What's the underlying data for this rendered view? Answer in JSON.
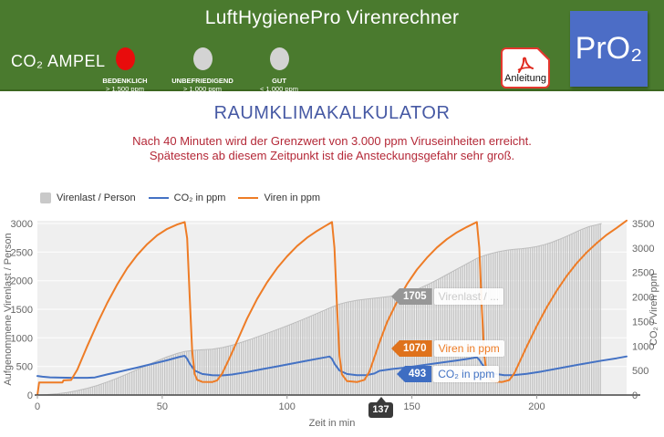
{
  "header": {
    "title": "LuftHygienePro Virenrechner",
    "ampel_label": "CO₂ AMPEL",
    "lights": [
      {
        "label": "BEDENKLICH",
        "threshold": "> 1.500 ppm",
        "color": "#e80c0c",
        "active": true
      },
      {
        "label": "UNBEFRIEDIGEND",
        "threshold": "> 1.000 ppm",
        "color": "#d3d3d3",
        "active": false
      },
      {
        "label": "GUT",
        "threshold": "< 1.000 ppm",
        "color": "#d3d3d3",
        "active": false
      }
    ],
    "manual_button_label": "Anleitung",
    "manual_button_icon": "pdf-icon",
    "logo_text": "PrO₂"
  },
  "main": {
    "title": "RAUMKLIMAKALKULATOR",
    "warning_line1": "Nach 40 Minuten wird der Grenzwert von 3.000 ppm Viruseinheiten erreicht.",
    "warning_line2": "Spätestens ab diesem Zeitpunkt ist die Ansteckungsgefahr sehr groß."
  },
  "colors": {
    "header_green": "#4a7a2e",
    "logo_blue": "#4c6dc6",
    "title_blue": "#4659a4",
    "warning_red": "#b42837",
    "plot_background": "#efefef"
  },
  "tooltips": {
    "virenlast": {
      "value": "1705",
      "label": "Virenlast / ..."
    },
    "viren": {
      "value": "1070",
      "label": "Viren in ppm"
    },
    "co2": {
      "value": "493",
      "label": "CO₂ in ppm"
    },
    "x_marker": "137"
  },
  "chart_data": {
    "type": "combo",
    "xaxis": {
      "title": "Zeit in min",
      "min": 0,
      "max": 236,
      "ticks": [
        0,
        50,
        100,
        150,
        200
      ],
      "marker_value": 137
    },
    "yaxis_left": {
      "title": "Aufgenommene Virenlast / Person",
      "min": 0,
      "max": 3000,
      "ticks": [
        0,
        500,
        1000,
        1500,
        2000,
        2500,
        3000
      ]
    },
    "yaxis_right": {
      "title": "CO₂ / Viren ppm",
      "min": 0,
      "max": 3500,
      "ticks": [
        0,
        500,
        1000,
        1500,
        2000,
        2500,
        3000,
        3500
      ]
    },
    "grid": true,
    "legend_position": "top-left",
    "series": [
      {
        "name": "Virenlast / Person",
        "type": "area-bars",
        "axis": "left",
        "color": "#c2c2c2",
        "points": [
          [
            0,
            0
          ],
          [
            4,
            8
          ],
          [
            8,
            22
          ],
          [
            12,
            45
          ],
          [
            16,
            78
          ],
          [
            20,
            118
          ],
          [
            24,
            168
          ],
          [
            28,
            228
          ],
          [
            32,
            295
          ],
          [
            36,
            368
          ],
          [
            40,
            445
          ],
          [
            44,
            522
          ],
          [
            48,
            598
          ],
          [
            52,
            668
          ],
          [
            56,
            728
          ],
          [
            59,
            762
          ],
          [
            62,
            780
          ],
          [
            66,
            792
          ],
          [
            70,
            802
          ],
          [
            74,
            830
          ],
          [
            78,
            872
          ],
          [
            82,
            925
          ],
          [
            86,
            985
          ],
          [
            90,
            1048
          ],
          [
            94,
            1112
          ],
          [
            98,
            1178
          ],
          [
            102,
            1245
          ],
          [
            106,
            1315
          ],
          [
            110,
            1390
          ],
          [
            114,
            1465
          ],
          [
            118,
            1540
          ],
          [
            121,
            1590
          ],
          [
            124,
            1625
          ],
          [
            128,
            1658
          ],
          [
            132,
            1680
          ],
          [
            137,
            1705
          ],
          [
            141,
            1725
          ],
          [
            145,
            1755
          ],
          [
            149,
            1800
          ],
          [
            153,
            1865
          ],
          [
            157,
            1945
          ],
          [
            161,
            2035
          ],
          [
            165,
            2130
          ],
          [
            169,
            2225
          ],
          [
            173,
            2320
          ],
          [
            176,
            2390
          ],
          [
            179,
            2440
          ],
          [
            182,
            2480
          ],
          [
            185,
            2510
          ],
          [
            188,
            2532
          ],
          [
            191,
            2548
          ],
          [
            194,
            2560
          ],
          [
            197,
            2575
          ],
          [
            200,
            2598
          ],
          [
            203,
            2630
          ],
          [
            206,
            2672
          ],
          [
            209,
            2722
          ],
          [
            212,
            2778
          ],
          [
            215,
            2838
          ],
          [
            218,
            2898
          ],
          [
            221,
            2945
          ],
          [
            224,
            2980
          ],
          [
            226,
            3000
          ]
        ]
      },
      {
        "name": "CO₂ in ppm",
        "type": "line",
        "axis": "right",
        "color": "#4472c4",
        "points": [
          [
            0,
            390
          ],
          [
            2,
            375
          ],
          [
            5,
            362
          ],
          [
            9,
            355
          ],
          [
            14,
            352
          ],
          [
            20,
            352
          ],
          [
            23,
            360
          ],
          [
            28,
            420
          ],
          [
            34,
            490
          ],
          [
            40,
            560
          ],
          [
            46,
            635
          ],
          [
            52,
            710
          ],
          [
            57,
            780
          ],
          [
            59,
            800
          ],
          [
            60,
            740
          ],
          [
            61,
            640
          ],
          [
            63,
            500
          ],
          [
            66,
            430
          ],
          [
            70,
            405
          ],
          [
            74,
            400
          ],
          [
            78,
            418
          ],
          [
            84,
            470
          ],
          [
            90,
            528
          ],
          [
            96,
            585
          ],
          [
            102,
            642
          ],
          [
            108,
            700
          ],
          [
            113,
            748
          ],
          [
            117,
            785
          ],
          [
            118,
            740
          ],
          [
            119,
            640
          ],
          [
            121,
            500
          ],
          [
            124,
            430
          ],
          [
            128,
            405
          ],
          [
            132,
            408
          ],
          [
            135,
            440
          ],
          [
            137,
            493
          ],
          [
            142,
            530
          ],
          [
            148,
            565
          ],
          [
            155,
            615
          ],
          [
            162,
            662
          ],
          [
            168,
            706
          ],
          [
            172,
            736
          ],
          [
            176,
            768
          ],
          [
            177,
            720
          ],
          [
            178,
            640
          ],
          [
            180,
            505
          ],
          [
            183,
            435
          ],
          [
            187,
            405
          ],
          [
            191,
            408
          ],
          [
            196,
            432
          ],
          [
            202,
            480
          ],
          [
            210,
            556
          ],
          [
            218,
            632
          ],
          [
            226,
            702
          ],
          [
            232,
            750
          ],
          [
            236,
            788
          ]
        ]
      },
      {
        "name": "Viren in ppm",
        "type": "line",
        "axis": "right",
        "color": "#ee7c26",
        "points": [
          [
            0,
            0
          ],
          [
            0.7,
            255
          ],
          [
            10,
            255
          ],
          [
            10.5,
            300
          ],
          [
            13.5,
            308
          ],
          [
            16,
            520
          ],
          [
            20,
            1000
          ],
          [
            24,
            1460
          ],
          [
            28,
            1880
          ],
          [
            32,
            2260
          ],
          [
            36,
            2590
          ],
          [
            40,
            2860
          ],
          [
            44,
            3080
          ],
          [
            48,
            3260
          ],
          [
            52,
            3390
          ],
          [
            56,
            3480
          ],
          [
            59,
            3530
          ],
          [
            60,
            3200
          ],
          [
            61,
            2000
          ],
          [
            62,
            900
          ],
          [
            63,
            430
          ],
          [
            64,
            310
          ],
          [
            66,
            268
          ],
          [
            70,
            264
          ],
          [
            72,
            300
          ],
          [
            74,
            440
          ],
          [
            77,
            760
          ],
          [
            80,
            1100
          ],
          [
            84,
            1560
          ],
          [
            88,
            1960
          ],
          [
            92,
            2300
          ],
          [
            96,
            2590
          ],
          [
            100,
            2830
          ],
          [
            104,
            3040
          ],
          [
            108,
            3210
          ],
          [
            112,
            3350
          ],
          [
            115,
            3440
          ],
          [
            118,
            3530
          ],
          [
            119,
            3000
          ],
          [
            120,
            1800
          ],
          [
            121,
            800
          ],
          [
            122,
            420
          ],
          [
            124,
            285
          ],
          [
            128,
            264
          ],
          [
            131,
            310
          ],
          [
            133,
            480
          ],
          [
            135,
            770
          ],
          [
            137,
            1070
          ],
          [
            140,
            1480
          ],
          [
            144,
            1900
          ],
          [
            148,
            2260
          ],
          [
            152,
            2560
          ],
          [
            156,
            2800
          ],
          [
            160,
            3010
          ],
          [
            164,
            3180
          ],
          [
            168,
            3320
          ],
          [
            172,
            3430
          ],
          [
            176,
            3530
          ],
          [
            177,
            3000
          ],
          [
            178,
            1800
          ],
          [
            179,
            800
          ],
          [
            180,
            420
          ],
          [
            182,
            285
          ],
          [
            186,
            264
          ],
          [
            189,
            305
          ],
          [
            191,
            440
          ],
          [
            193,
            660
          ],
          [
            196,
            990
          ],
          [
            200,
            1410
          ],
          [
            204,
            1790
          ],
          [
            208,
            2130
          ],
          [
            212,
            2430
          ],
          [
            216,
            2690
          ],
          [
            220,
            2910
          ],
          [
            224,
            3100
          ],
          [
            228,
            3270
          ],
          [
            232,
            3410
          ],
          [
            236,
            3560
          ]
        ]
      }
    ]
  }
}
